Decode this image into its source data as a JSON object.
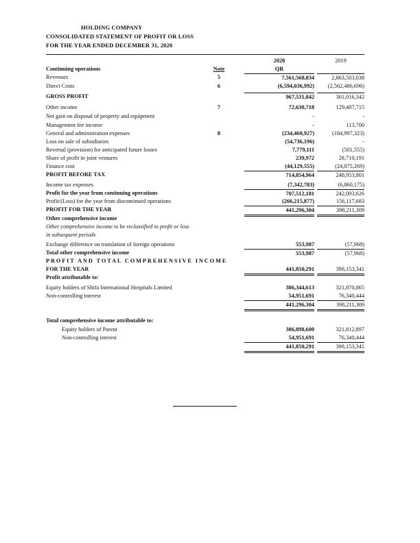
{
  "header": {
    "company": "HOLDING COMPANY",
    "statement": "CONSOLIDATED STATEMENT OF PROFIT OR LOSS",
    "period": "FOR THE YEAR ENDED DECEMBER 31, 2020"
  },
  "columns": {
    "year_current": "2020",
    "year_prior": "2019",
    "note": "Note",
    "currency": "QR"
  },
  "rows": [
    {
      "label": "Continuing operations",
      "note": "",
      "v2020": "",
      "v2019": ""
    },
    {
      "label": "Revenues",
      "note": "5",
      "v2020": "7,561,568,834",
      "v2019": "2,863,503,038"
    },
    {
      "label": "Direct Costs",
      "note": "6",
      "v2020": "(6,594,036,992)",
      "v2019": "(2,562,486,696)"
    },
    {
      "label": "GROSS PROFIT",
      "note": "",
      "v2020": "967,531,842",
      "v2019": "301,016,342"
    },
    {
      "label": "Other income",
      "note": "7",
      "v2020": "72,630,718",
      "v2019": "129,487,715"
    },
    {
      "label": "Net gain on disposal of property and equipment",
      "note": "",
      "v2020": "-",
      "v2019": "-"
    },
    {
      "label": "Management fee income",
      "note": "",
      "v2020": "-",
      "v2019": "113,700"
    },
    {
      "label": "General and administration expenses",
      "note": "8",
      "v2020": "(234,460,927)",
      "v2019": "(184,997,323)"
    },
    {
      "label": "Loss on sale of subsidiaries",
      "note": "",
      "v2020": "(54,736,196)",
      "v2019": "-"
    },
    {
      "label": "Reversal (provision) for anticipated future losses",
      "note": "",
      "v2020": "7,779,111",
      "v2019": "(501,555)"
    },
    {
      "label": "Share of profit in joint ventures",
      "note": "",
      "v2020": "239,972",
      "v2019": "28,710,191"
    },
    {
      "label": "Finance cost",
      "note": "",
      "v2020": "(44,129,555)",
      "v2019": "(24,875,269)"
    },
    {
      "label": "PROFIT BEFORE TAX",
      "note": "",
      "v2020": "714,854,964",
      "v2019": "248,953,801"
    },
    {
      "label": "Income tax expenses",
      "note": "",
      "v2020": "(7,342,783)",
      "v2019": "(6,860,175)"
    },
    {
      "label": "Profit for the year from continuing operations",
      "note": "",
      "v2020": "707,512,181",
      "v2019": "242,093,626"
    },
    {
      "label": "Profit/(Loss) for the year from discontinued operations",
      "note": "",
      "v2020": "(266,215,877)",
      "v2019": "156,117,683"
    },
    {
      "label": "PROFIT FOR THE YEAR",
      "note": "",
      "v2020": "441,296,304",
      "v2019": "398,211,309"
    },
    {
      "label": "Other comprehensive income",
      "note": "",
      "v2020": "",
      "v2019": ""
    },
    {
      "label": "Other comprehensive income to be reclassified to profit or loss",
      "note": "",
      "v2020": "",
      "v2019": ""
    },
    {
      "label": "in subsequent periods",
      "note": "",
      "v2020": "",
      "v2019": ""
    },
    {
      "label": "Exchange difference on translation of foreign operations",
      "note": "",
      "v2020": "553,987",
      "v2019": "(57,968)"
    },
    {
      "label": "Total other comprehensive income",
      "note": "",
      "v2020": "553,987",
      "v2019": "(57,968)"
    },
    {
      "label": "PROFIT AND TOTAL COMPREHENSIVE INCOME",
      "note": "",
      "v2020": "",
      "v2019": ""
    },
    {
      "label": "FOR THE YEAR",
      "note": "",
      "v2020": "441,850,291",
      "v2019": "398,153,341"
    },
    {
      "label": "Profit attributable to:",
      "note": "",
      "v2020": "",
      "v2019": ""
    },
    {
      "label": "Equity holders of Shifa International Hospitals Limited",
      "note": "",
      "v2020": "386,344,613",
      "v2019": "321,870,865"
    },
    {
      "label": "Non-controlling interest",
      "note": "",
      "v2020": "54,951,691",
      "v2019": "76,340,444"
    },
    {
      "label": "",
      "note": "",
      "v2020": "441,296,304",
      "v2019": "398,211,309"
    },
    {
      "label": "Total comprehensive income attributable to:",
      "note": "",
      "v2020": "",
      "v2019": ""
    },
    {
      "label": "Equity holders of Parent",
      "note": "",
      "v2020": "386,898,600",
      "v2019": "321,812,897"
    },
    {
      "label": "Non-controlling interest",
      "note": "",
      "v2020": "54,951,691",
      "v2019": "76,340,444"
    },
    {
      "label": "",
      "note": "",
      "v2020": "441,850,291",
      "v2019": "398,153,341"
    }
  ]
}
